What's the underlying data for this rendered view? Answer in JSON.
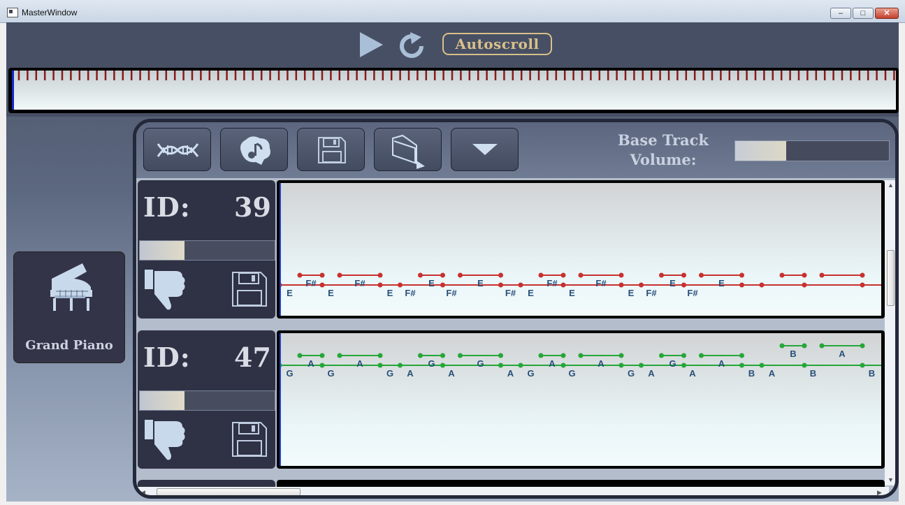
{
  "window": {
    "title": "MasterWindow",
    "minimize_glyph": "‒",
    "maximize_glyph": "□",
    "close_glyph": "✕"
  },
  "playback": {
    "play_icon": "play-icon",
    "replay_icon": "replay-icon",
    "autoscroll_label": "Autoscroll"
  },
  "instrument": {
    "name": "Grand Piano",
    "icon": "grand-piano-icon"
  },
  "toolbar": {
    "buttons": [
      "dna-icon",
      "music-brain-icon",
      "save-icon",
      "open-folder-icon",
      "dropdown-arrow-icon"
    ],
    "base_volume_label": "Base Track Volume:",
    "base_volume_level": 0.33
  },
  "tracks": [
    {
      "id_label": "ID:",
      "id": "39",
      "volume_level": 0.33,
      "note_color": "#c8312f",
      "note_labels": [
        "E",
        "F#",
        "E",
        "F#",
        "E",
        "F#",
        "E",
        "F#",
        "E",
        "F#",
        "E",
        "F#",
        "E",
        "F#",
        "E",
        "F#",
        "E",
        "F#",
        "E"
      ]
    },
    {
      "id_label": "ID:",
      "id": "47",
      "volume_level": 0.33,
      "note_color": "#26a63a",
      "note_labels": [
        "G",
        "A",
        "G",
        "A",
        "G",
        "A",
        "G",
        "A",
        "G",
        "A",
        "G",
        "A",
        "G",
        "A",
        "G",
        "A",
        "G",
        "A",
        "A",
        "B",
        "A",
        "B",
        "B",
        "A",
        "B"
      ]
    }
  ],
  "colors": {
    "accent_gold": "#d9c08a",
    "panel_dark": "#2f3144",
    "timeline_tick": "#8a1a1a"
  }
}
